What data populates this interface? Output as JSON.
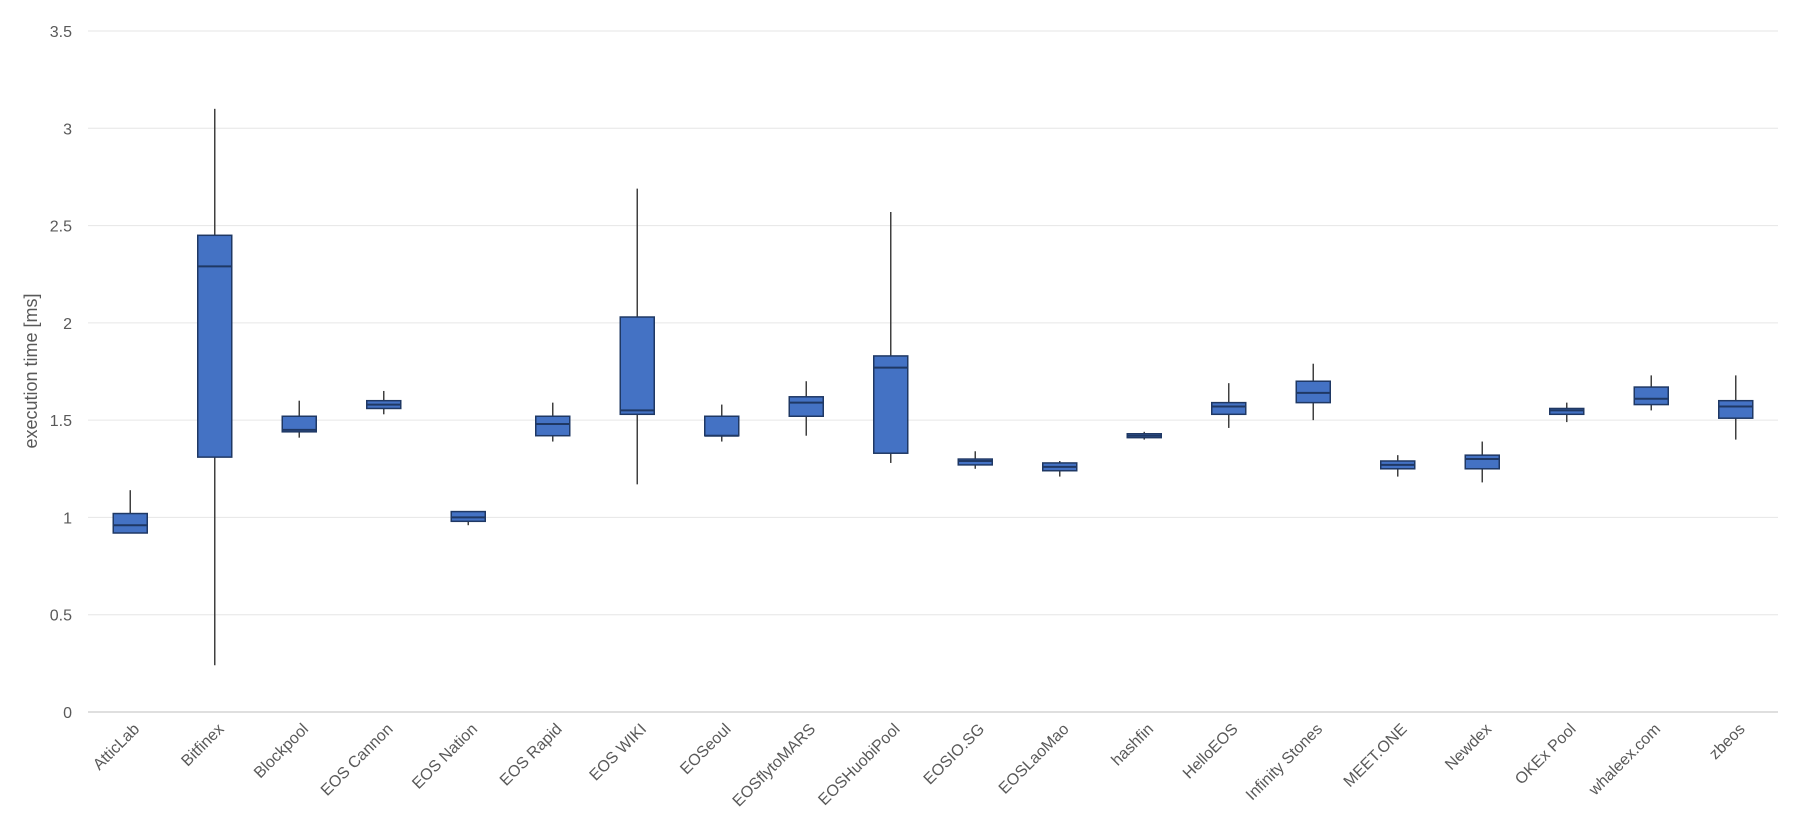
{
  "chart_data": {
    "type": "boxplot",
    "title": "",
    "xlabel": "",
    "ylabel": "execution time [ms]",
    "ylim": [
      0,
      3.5
    ],
    "yticks": [
      0,
      0.5,
      1,
      1.5,
      2,
      2.5,
      3,
      3.5
    ],
    "grid": true,
    "legend": "none",
    "box_color": "#4472C4",
    "box_border_color": "#1F3864",
    "whisker_color": "#404040",
    "grid_color": "#E6E6E6",
    "categories": [
      "AtticLab",
      "Bitfinex",
      "Blockpool",
      "EOS Cannon",
      "EOS Nation",
      "EOS Rapid",
      "EOS WIKI",
      "EOSeoul",
      "EOSflytoMARS",
      "EOSHuobiPool",
      "EOSIO.SG",
      "EOSLaoMao",
      "hashfin",
      "HelloEOS",
      "Infinity Stones",
      "MEET.ONE",
      "Newdex",
      "OKEx Pool",
      "whaleex.com",
      "zbeos"
    ],
    "boxes": [
      {
        "min": 0.92,
        "q1": 0.92,
        "median": 0.96,
        "q3": 1.02,
        "max": 1.14
      },
      {
        "min": 0.24,
        "q1": 1.31,
        "median": 2.29,
        "q3": 2.45,
        "max": 3.1
      },
      {
        "min": 1.41,
        "q1": 1.44,
        "median": 1.45,
        "q3": 1.52,
        "max": 1.6
      },
      {
        "min": 1.53,
        "q1": 1.56,
        "median": 1.58,
        "q3": 1.6,
        "max": 1.65
      },
      {
        "min": 0.96,
        "q1": 0.98,
        "median": 1.0,
        "q3": 1.03,
        "max": 1.03
      },
      {
        "min": 1.39,
        "q1": 1.42,
        "median": 1.48,
        "q3": 1.52,
        "max": 1.59
      },
      {
        "min": 1.17,
        "q1": 1.53,
        "median": 1.55,
        "q3": 2.03,
        "max": 2.69
      },
      {
        "min": 1.39,
        "q1": 1.42,
        "median": 1.42,
        "q3": 1.52,
        "max": 1.58
      },
      {
        "min": 1.42,
        "q1": 1.52,
        "median": 1.59,
        "q3": 1.62,
        "max": 1.7
      },
      {
        "min": 1.28,
        "q1": 1.33,
        "median": 1.77,
        "q3": 1.83,
        "max": 2.57
      },
      {
        "min": 1.25,
        "q1": 1.27,
        "median": 1.29,
        "q3": 1.3,
        "max": 1.34
      },
      {
        "min": 1.21,
        "q1": 1.24,
        "median": 1.26,
        "q3": 1.28,
        "max": 1.29
      },
      {
        "min": 1.4,
        "q1": 1.41,
        "median": 1.42,
        "q3": 1.43,
        "max": 1.44
      },
      {
        "min": 1.46,
        "q1": 1.53,
        "median": 1.57,
        "q3": 1.59,
        "max": 1.69
      },
      {
        "min": 1.5,
        "q1": 1.59,
        "median": 1.64,
        "q3": 1.7,
        "max": 1.79
      },
      {
        "min": 1.21,
        "q1": 1.25,
        "median": 1.27,
        "q3": 1.29,
        "max": 1.32
      },
      {
        "min": 1.18,
        "q1": 1.25,
        "median": 1.3,
        "q3": 1.32,
        "max": 1.39
      },
      {
        "min": 1.49,
        "q1": 1.53,
        "median": 1.55,
        "q3": 1.56,
        "max": 1.59
      },
      {
        "min": 1.55,
        "q1": 1.58,
        "median": 1.61,
        "q3": 1.67,
        "max": 1.73
      },
      {
        "min": 1.4,
        "q1": 1.51,
        "median": 1.57,
        "q3": 1.6,
        "max": 1.73
      }
    ]
  }
}
